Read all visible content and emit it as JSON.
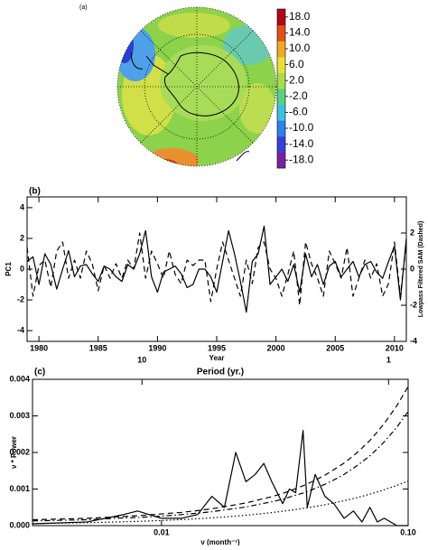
{
  "chart_data": [
    {
      "type": "map",
      "label": "(a)",
      "colorbar": {
        "lim": [
          -20,
          20
        ],
        "colors": [
          "#7a1fa0",
          "#3a3fd8",
          "#2f7fe8",
          "#3cc0e0",
          "#58d080",
          "#a8dc48",
          "#e8e038",
          "#f0a828",
          "#e05018",
          "#b00818"
        ],
        "ticks": [
          {
            "value": 18,
            "label": "18.0"
          },
          {
            "value": 14,
            "label": "14.0"
          },
          {
            "value": 10,
            "label": "10.0"
          },
          {
            "value": 6,
            "label": "6.0"
          },
          {
            "value": 2,
            "label": "2.0"
          },
          {
            "value": -2,
            "label": "-2.0"
          },
          {
            "value": -6,
            "label": "-6.0"
          },
          {
            "value": -10,
            "label": "-10.0"
          },
          {
            "value": -14,
            "label": "-14.0"
          },
          {
            "value": -18,
            "label": "-18.0"
          }
        ]
      }
    },
    {
      "type": "line",
      "label": "(b)",
      "xlabel": "Year",
      "ylabel": "PC1",
      "y2label": "Lowpass Filtered SAM (Dashed)",
      "x": [
        1979,
        1979.5,
        1980,
        1980.5,
        1981,
        1981.5,
        1982,
        1982.5,
        1983,
        1983.5,
        1984,
        1984.5,
        1985,
        1985.5,
        1986,
        1986.5,
        1987,
        1987.5,
        1988,
        1988.5,
        1989,
        1989.5,
        1990,
        1990.5,
        1991,
        1991.5,
        1992,
        1992.5,
        1993,
        1993.5,
        1994,
        1994.5,
        1995,
        1995.5,
        1996,
        1996.5,
        1997,
        1997.5,
        1998,
        1998.5,
        1999,
        1999.5,
        2000,
        2000.5,
        2001,
        2001.5,
        2002,
        2002.5,
        2003,
        2003.5,
        2004,
        2004.5,
        2005,
        2005.5,
        2006,
        2006.5,
        2007,
        2007.5,
        2008,
        2008.5,
        2009,
        2009.5,
        2010,
        2010.5,
        2011
      ],
      "series": [
        {
          "color": "#000000",
          "dash": "solid",
          "values": [
            0.5,
            0.8,
            -1,
            1,
            0.3,
            -1.3,
            0,
            1.2,
            -0.5,
            0.2,
            0.3,
            -0.3,
            -0.8,
            0.2,
            0,
            -0.5,
            -0.8,
            0.3,
            0,
            1,
            2.5,
            -0.5,
            -1.5,
            -0.2,
            0,
            0.2,
            -0.3,
            -1.2,
            -1,
            0,
            0,
            -0.5,
            -1.5,
            0.5,
            2.5,
            1,
            -0.8,
            -2.8,
            0.5,
            1,
            2.8,
            -1,
            -0.5,
            0,
            -0.8,
            0.3,
            -1.5,
            1,
            -0.5,
            0.3,
            -1,
            0.2,
            0.5,
            -0.5,
            0,
            0.5,
            -0.5,
            0.3,
            0.5,
            -0.2,
            -0.6,
            0.5,
            1.5,
            -2,
            2
          ]
        },
        {
          "color": "#000000",
          "dash": "dashed",
          "axis": "y2",
          "values": [
            1.2,
            -1.5,
            0.2,
            0.5,
            -1,
            1,
            1.5,
            -0.5,
            0.5,
            -0.5,
            1,
            0.3,
            -1.2,
            0.2,
            -0.5,
            0.3,
            -0.5,
            0.5,
            0,
            2,
            -0.5,
            1,
            0.3,
            -0.5,
            1,
            -0.3,
            -0.8,
            0.5,
            0.2,
            0.5,
            0.5,
            -1.8,
            0,
            1.5,
            0.5,
            -0.5,
            -1.5,
            0.5,
            -0.8,
            1.2,
            1.5,
            0,
            -0.5,
            -1.5,
            -0.3,
            1,
            -2,
            1.5,
            0.3,
            -0.5,
            -1.5,
            1,
            0.3,
            -0.5,
            1.2,
            -1.5,
            -0.5,
            0.5,
            -0.5,
            0.3,
            -1.5,
            -0.8,
            1.5,
            -1.5,
            1.5
          ]
        }
      ],
      "xlim": [
        1979,
        2011
      ],
      "xticks": [
        1980,
        1985,
        1990,
        1995,
        2000,
        2005,
        2010
      ],
      "ylim": [
        -4.7,
        4.7
      ],
      "yticks": [
        -4,
        -2,
        0,
        2,
        4
      ],
      "y2lim": [
        -4,
        4
      ],
      "y2ticks": [
        -4,
        -2,
        0,
        2
      ]
    },
    {
      "type": "line",
      "label": "(c)",
      "xlabel": "ν (month⁻¹)",
      "ylabel": "ν * Power",
      "x2label": "Period (yr.)",
      "xlog": true,
      "x2log": true,
      "x": [
        0.003,
        0.005,
        0.007,
        0.008,
        0.01,
        0.012,
        0.014,
        0.016,
        0.018,
        0.02,
        0.022,
        0.024,
        0.026,
        0.028,
        0.031,
        0.033,
        0.035,
        0.0375,
        0.039,
        0.042,
        0.046,
        0.05,
        0.055,
        0.06,
        0.065,
        0.07,
        0.075,
        0.08,
        0.09,
        0.1
      ],
      "series": [
        {
          "color": "#000000",
          "dash": "solid",
          "values": [
            5e-05,
            0.0001,
            0.0003,
            0.0004,
            0.0002,
            0.0002,
            0.0003,
            0.0008,
            0.0005,
            0.002,
            0.0012,
            0.0014,
            0.0017,
            0.0012,
            0.0006,
            0.001,
            0.0009,
            0.0026,
            0.0005,
            0.0014,
            0.0008,
            0.0006,
            0.0002,
            0.0004,
            0.0001,
            0.0005,
            0.0001,
            0.0002,
            0,
            0
          ]
        },
        {
          "color": "#000000",
          "dash": "dashed",
          "values": [
            0.00016,
            0.0002,
            0.00025,
            0.00027,
            0.00032,
            0.00036,
            0.00041,
            0.00046,
            0.00052,
            0.00057,
            0.00062,
            0.00068,
            0.00074,
            0.00079,
            0.00088,
            0.00095,
            0.00101,
            0.00109,
            0.00114,
            0.00124,
            0.00138,
            0.00153,
            0.00171,
            0.00191,
            0.00212,
            0.00233,
            0.00256,
            0.00279,
            0.00328,
            0.0038
          ]
        },
        {
          "color": "#000000",
          "dash": "dashdot",
          "values": [
            0.00013,
            0.00016,
            0.00021,
            0.00022,
            0.00026,
            0.0003,
            0.00034,
            0.00038,
            0.00043,
            0.00047,
            0.00051,
            0.00056,
            0.00061,
            0.00065,
            0.00072,
            0.00078,
            0.00083,
            0.00089,
            0.00093,
            0.00102,
            0.00113,
            0.00125,
            0.0014,
            0.00157,
            0.00174,
            0.00191,
            0.0021,
            0.00229,
            0.00269,
            0.00312
          ]
        },
        {
          "color": "#000000",
          "dash": "dotted",
          "values": [
            5.6e-05,
            8e-05,
            0.000104,
            0.000116,
            0.00014,
            0.000164,
            0.000188,
            0.000212,
            0.000236,
            0.00026,
            0.000284,
            0.000308,
            0.000332,
            0.000356,
            0.000392,
            0.000416,
            0.00044,
            0.00047,
            0.000488,
            0.000524,
            0.000572,
            0.00062,
            0.00068,
            0.00074,
            0.0008,
            0.00086,
            0.00092,
            0.00098,
            0.0011,
            0.00122
          ]
        }
      ],
      "xlim": [
        0.003,
        0.1
      ],
      "xticks": [
        0.01,
        {
          "value": 0.1,
          "label": "0.10"
        }
      ],
      "x2lim": [
        27.8,
        0.833
      ],
      "x2ticks": [
        10,
        1
      ],
      "ylim": [
        0,
        0.004
      ],
      "yticks": [
        {
          "value": 0,
          "label": "0.000"
        },
        {
          "value": 0.001,
          "label": "0.001"
        },
        {
          "value": 0.002,
          "label": "0.002"
        },
        {
          "value": 0.003,
          "label": "0.003"
        },
        {
          "value": 0.004,
          "label": "0.004"
        }
      ]
    }
  ]
}
